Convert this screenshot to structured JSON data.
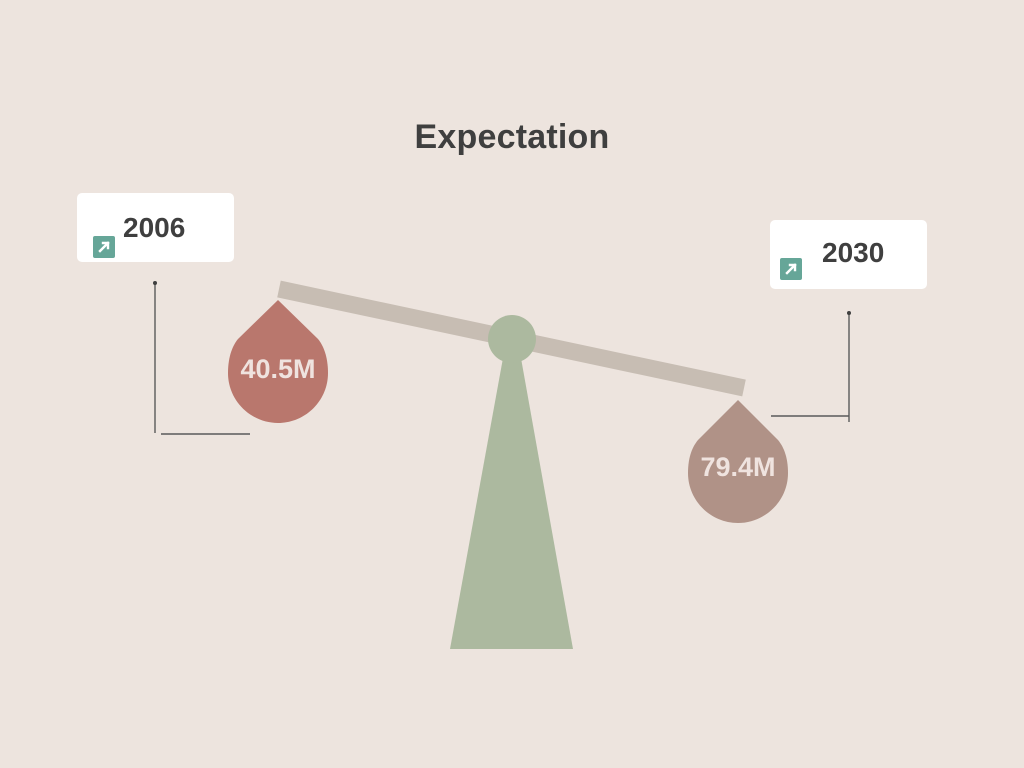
{
  "title": "Expectation",
  "left": {
    "year": "2006",
    "value": "40.5M",
    "drop_color": "#b9776d",
    "icon": "arrow-up-right-icon"
  },
  "right": {
    "year": "2030",
    "value": "79.4M",
    "drop_color": "#b09287",
    "icon": "arrow-up-right-icon"
  },
  "colors": {
    "background": "#ede4de",
    "beam": "#c7bdb3",
    "pivot": "#acb99f",
    "icon_bg": "#66a698",
    "text": "#3f3f3f",
    "value_text": "#efe3df"
  }
}
